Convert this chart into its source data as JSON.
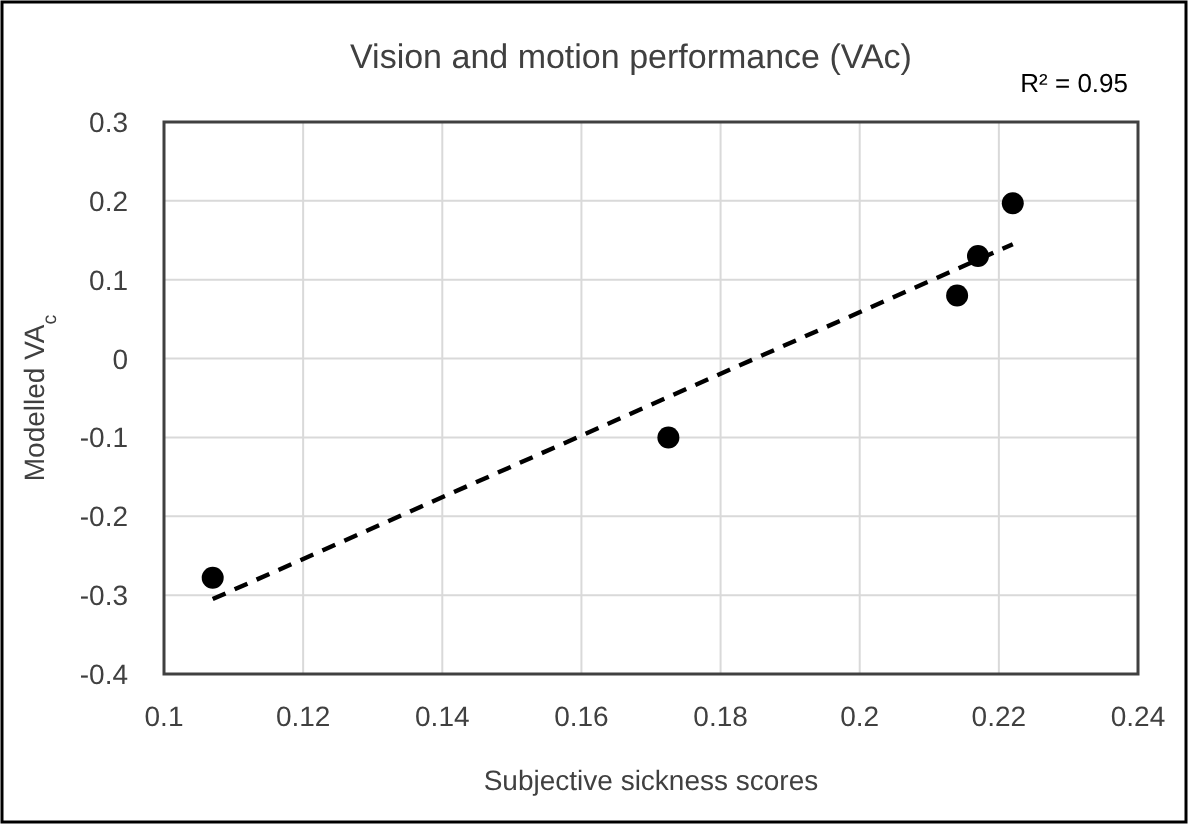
{
  "chart_data": {
    "type": "scatter",
    "title": "Vision and motion performance (VAc)",
    "xlabel": "Subjective sickness scores",
    "ylabel": "Modelled VA$_{c}$",
    "annotations": [
      "R² = 0.95"
    ],
    "series": [
      {
        "color": "#000000",
        "marker": "circle",
        "x": [
          0.107,
          0.1725,
          0.214,
          0.217,
          0.222
        ],
        "values": [
          -0.278,
          -0.1,
          0.08,
          0.13,
          0.197
        ]
      },
      {
        "type": "line",
        "color": "#000000",
        "line_style": "dashed",
        "x": [
          0.107,
          0.222
        ],
        "values": [
          -0.305,
          0.145
        ]
      }
    ],
    "xlim": [
      0.1,
      0.24
    ],
    "xticks": [
      0.1,
      0.12,
      0.14,
      0.16,
      0.18,
      {
        "value": 0.2,
        "label": "0.2"
      },
      0.22,
      0.24
    ],
    "ylim": [
      -0.4,
      0.3
    ],
    "yticks": [
      -0.4,
      -0.3,
      -0.2,
      -0.1,
      0,
      0.1,
      0.2,
      0.3
    ],
    "grid": true
  }
}
